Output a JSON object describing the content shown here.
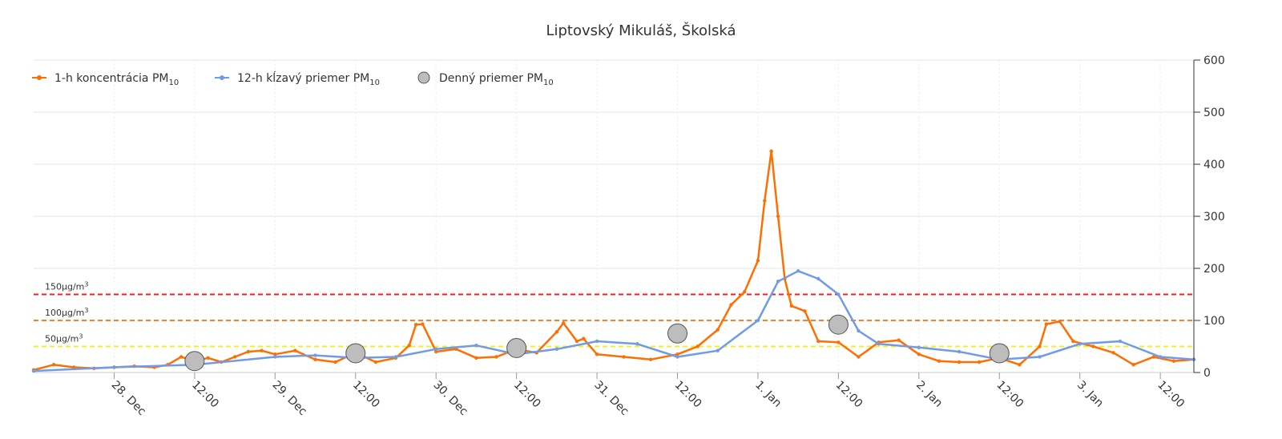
{
  "chart_data": {
    "type": "line",
    "title": "Liptovský Mikuláš, Školská",
    "x_range": [
      "2023-12-27T12:00",
      "2024-01-03T17:00"
    ],
    "ylim": [
      0,
      600
    ],
    "y_axis_side": "right",
    "y_ticks": [
      0,
      100,
      200,
      300,
      400,
      500,
      600
    ],
    "x_ticks": [
      {
        "t": "2023-12-28T00:00",
        "label": "28. Dec"
      },
      {
        "t": "2023-12-28T12:00",
        "label": "12:00"
      },
      {
        "t": "2023-12-29T00:00",
        "label": "29. Dec"
      },
      {
        "t": "2023-12-29T12:00",
        "label": "12:00"
      },
      {
        "t": "2023-12-30T00:00",
        "label": "30. Dec"
      },
      {
        "t": "2023-12-30T12:00",
        "label": "12:00"
      },
      {
        "t": "2023-12-31T00:00",
        "label": "31. Dec"
      },
      {
        "t": "2023-12-31T12:00",
        "label": "12:00"
      },
      {
        "t": "2024-01-01T00:00",
        "label": "1. Jan"
      },
      {
        "t": "2024-01-01T12:00",
        "label": "12:00"
      },
      {
        "t": "2024-01-02T00:00",
        "label": "2. Jan"
      },
      {
        "t": "2024-01-02T12:00",
        "label": "12:00"
      },
      {
        "t": "2024-01-03T00:00",
        "label": "3. Jan"
      },
      {
        "t": "2024-01-03T12:00",
        "label": "12:00"
      }
    ],
    "grid": true,
    "legend_position": "top-left",
    "thresholds": [
      {
        "value": 150,
        "label_main": "150μg/m",
        "label_sup": "3",
        "color": "#e8242b"
      },
      {
        "value": 100,
        "label_main": "100μg/m",
        "label_sup": "3",
        "color": "#f5822a"
      },
      {
        "value": 50,
        "label_main": "50μg/m",
        "label_sup": "3",
        "color": "#f0f02a"
      }
    ],
    "series": [
      {
        "name_main": "1-h koncentrácia PM",
        "name_sub": "10",
        "kind": "line",
        "color": "#ff6e00",
        "points": [
          [
            "2023-12-27T12:00",
            5
          ],
          [
            "2023-12-27T15:00",
            15
          ],
          [
            "2023-12-27T18:00",
            10
          ],
          [
            "2023-12-27T21:00",
            8
          ],
          [
            "2023-12-28T00:00",
            10
          ],
          [
            "2023-12-28T03:00",
            12
          ],
          [
            "2023-12-28T06:00",
            10
          ],
          [
            "2023-12-28T08:00",
            15
          ],
          [
            "2023-12-28T10:00",
            30
          ],
          [
            "2023-12-28T12:00",
            22
          ],
          [
            "2023-12-28T14:00",
            28
          ],
          [
            "2023-12-28T16:00",
            20
          ],
          [
            "2023-12-28T18:00",
            30
          ],
          [
            "2023-12-28T20:00",
            40
          ],
          [
            "2023-12-28T22:00",
            42
          ],
          [
            "2023-12-29T00:00",
            35
          ],
          [
            "2023-12-29T03:00",
            42
          ],
          [
            "2023-12-29T06:00",
            25
          ],
          [
            "2023-12-29T09:00",
            20
          ],
          [
            "2023-12-29T12:00",
            38
          ],
          [
            "2023-12-29T15:00",
            20
          ],
          [
            "2023-12-29T18:00",
            28
          ],
          [
            "2023-12-29T20:00",
            52
          ],
          [
            "2023-12-29T21:00",
            92
          ],
          [
            "2023-12-29T22:00",
            93
          ],
          [
            "2023-12-30T00:00",
            40
          ],
          [
            "2023-12-30T03:00",
            45
          ],
          [
            "2023-12-30T06:00",
            28
          ],
          [
            "2023-12-30T09:00",
            30
          ],
          [
            "2023-12-30T12:00",
            45
          ],
          [
            "2023-12-30T15:00",
            38
          ],
          [
            "2023-12-30T18:00",
            78
          ],
          [
            "2023-12-30T19:00",
            95
          ],
          [
            "2023-12-30T21:00",
            60
          ],
          [
            "2023-12-30T22:00",
            65
          ],
          [
            "2023-12-31T00:00",
            35
          ],
          [
            "2023-12-31T04:00",
            30
          ],
          [
            "2023-12-31T08:00",
            25
          ],
          [
            "2023-12-31T12:00",
            35
          ],
          [
            "2023-12-31T15:00",
            50
          ],
          [
            "2023-12-31T18:00",
            82
          ],
          [
            "2023-12-31T20:00",
            130
          ],
          [
            "2023-12-31T22:00",
            155
          ],
          [
            "2024-01-01T00:00",
            215
          ],
          [
            "2024-01-01T01:00",
            330
          ],
          [
            "2024-01-01T02:00",
            425
          ],
          [
            "2024-01-01T03:00",
            300
          ],
          [
            "2024-01-01T04:00",
            180
          ],
          [
            "2024-01-01T05:00",
            128
          ],
          [
            "2024-01-01T07:00",
            118
          ],
          [
            "2024-01-01T09:00",
            60
          ],
          [
            "2024-01-01T12:00",
            58
          ],
          [
            "2024-01-01T15:00",
            30
          ],
          [
            "2024-01-01T18:00",
            58
          ],
          [
            "2024-01-01T21:00",
            62
          ],
          [
            "2024-01-02T00:00",
            35
          ],
          [
            "2024-01-02T03:00",
            22
          ],
          [
            "2024-01-02T06:00",
            20
          ],
          [
            "2024-01-02T09:00",
            20
          ],
          [
            "2024-01-02T12:00",
            28
          ],
          [
            "2024-01-02T15:00",
            15
          ],
          [
            "2024-01-02T18:00",
            50
          ],
          [
            "2024-01-02T19:00",
            93
          ],
          [
            "2024-01-02T21:00",
            98
          ],
          [
            "2024-01-02T23:00",
            60
          ],
          [
            "2024-01-03T02:00",
            50
          ],
          [
            "2024-01-03T05:00",
            38
          ],
          [
            "2024-01-03T08:00",
            15
          ],
          [
            "2024-01-03T11:00",
            30
          ],
          [
            "2024-01-03T14:00",
            22
          ],
          [
            "2024-01-03T17:00",
            25
          ]
        ]
      },
      {
        "name_main": "12-h kĺzavý priemer PM",
        "name_sub": "10",
        "kind": "line",
        "color": "#6f9be8",
        "points": [
          [
            "2023-12-27T12:00",
            3
          ],
          [
            "2023-12-28T00:00",
            10
          ],
          [
            "2023-12-28T12:00",
            15
          ],
          [
            "2023-12-29T00:00",
            30
          ],
          [
            "2023-12-29T06:00",
            33
          ],
          [
            "2023-12-29T12:00",
            28
          ],
          [
            "2023-12-29T18:00",
            30
          ],
          [
            "2023-12-30T00:00",
            45
          ],
          [
            "2023-12-30T06:00",
            52
          ],
          [
            "2023-12-30T12:00",
            35
          ],
          [
            "2023-12-30T18:00",
            45
          ],
          [
            "2023-12-31T00:00",
            60
          ],
          [
            "2023-12-31T06:00",
            55
          ],
          [
            "2023-12-31T12:00",
            30
          ],
          [
            "2023-12-31T18:00",
            42
          ],
          [
            "2024-01-01T00:00",
            100
          ],
          [
            "2024-01-01T03:00",
            175
          ],
          [
            "2024-01-01T06:00",
            195
          ],
          [
            "2024-01-01T09:00",
            180
          ],
          [
            "2024-01-01T12:00",
            150
          ],
          [
            "2024-01-01T15:00",
            80
          ],
          [
            "2024-01-01T18:00",
            55
          ],
          [
            "2024-01-02T00:00",
            48
          ],
          [
            "2024-01-02T06:00",
            40
          ],
          [
            "2024-01-02T12:00",
            25
          ],
          [
            "2024-01-02T18:00",
            30
          ],
          [
            "2024-01-03T00:00",
            55
          ],
          [
            "2024-01-03T06:00",
            60
          ],
          [
            "2024-01-03T12:00",
            30
          ],
          [
            "2024-01-03T17:00",
            25
          ]
        ]
      },
      {
        "name_main": "Denný priemer PM",
        "name_sub": "10",
        "kind": "scatter",
        "color": "#bdbdbd",
        "points": [
          [
            "2023-12-28T12:00",
            22
          ],
          [
            "2023-12-29T12:00",
            37
          ],
          [
            "2023-12-30T12:00",
            47
          ],
          [
            "2023-12-31T12:00",
            75
          ],
          [
            "2024-01-01T12:00",
            92
          ],
          [
            "2024-01-02T12:00",
            37
          ]
        ]
      }
    ]
  }
}
